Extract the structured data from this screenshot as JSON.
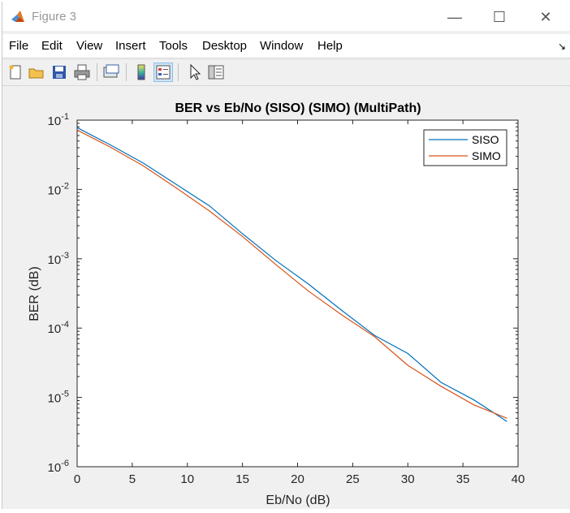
{
  "window": {
    "title": "Figure 3"
  },
  "window_controls": {
    "minimize": "—",
    "maximize": "☐",
    "close": "✕"
  },
  "menu": [
    "File",
    "Edit",
    "View",
    "Insert",
    "Tools",
    "Desktop",
    "Window",
    "Help"
  ],
  "menu_arrow": "↘",
  "toolbar_icons": [
    "new-figure-icon",
    "open-file-icon",
    "save-icon",
    "print-icon",
    "link-plot-icon",
    "colorbar-icon",
    "legend-icon",
    "pointer-icon",
    "property-inspector-icon"
  ],
  "colors": {
    "siso": "#0072BD",
    "simo": "#D95319"
  },
  "chart_data": {
    "type": "line",
    "title": "BER vs Eb/No (SISO) (SIMO) (MultiPath)",
    "xlabel": "Eb/No (dB)",
    "ylabel": "BER (dB)",
    "xlim": [
      0,
      40
    ],
    "ylim": [
      1e-06,
      0.1
    ],
    "yscale": "log",
    "grid": false,
    "legend_position": "top-right",
    "xticks": [
      0,
      5,
      10,
      15,
      20,
      25,
      30,
      35,
      40
    ],
    "ytick_labels": [
      "10-1",
      "10-2",
      "10-3",
      "10-4",
      "10-5",
      "10-6"
    ],
    "x": [
      0,
      3,
      6,
      9,
      12,
      15,
      18,
      21,
      24,
      27,
      30,
      33,
      36,
      39
    ],
    "series": [
      {
        "name": "SISO",
        "values": [
          0.078,
          0.044,
          0.024,
          0.0118,
          0.0058,
          0.0023,
          0.00095,
          0.00043,
          0.00018,
          7.8e-05,
          4.3e-05,
          1.65e-05,
          9.2e-06,
          4.5e-06
        ]
      },
      {
        "name": "SIMO",
        "values": [
          0.072,
          0.041,
          0.022,
          0.0105,
          0.0049,
          0.0021,
          0.00083,
          0.00034,
          0.000155,
          7.5e-05,
          2.9e-05,
          1.45e-05,
          7.8e-06,
          5e-06
        ]
      }
    ]
  }
}
